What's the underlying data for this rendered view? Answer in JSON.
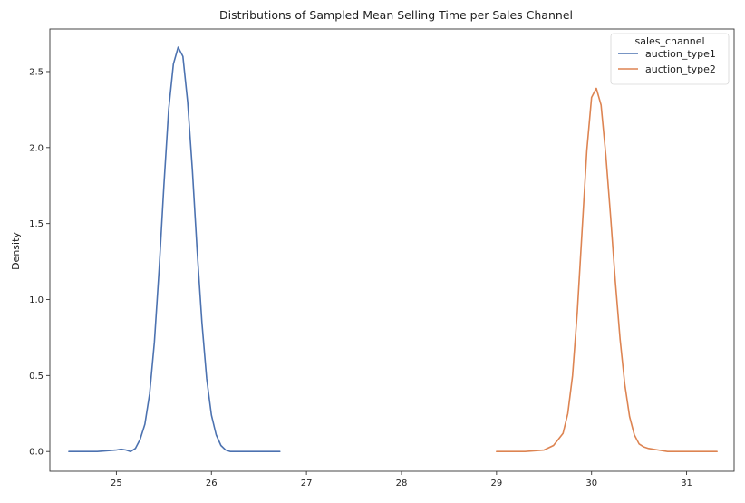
{
  "chart_data": {
    "type": "line",
    "title": "Distributions of Sampled Mean Selling Time per Sales Channel",
    "xlabel": "",
    "ylabel": "Density",
    "xlim": [
      24.3,
      31.5
    ],
    "ylim": [
      -0.13,
      2.78
    ],
    "xticks": [
      25,
      26,
      27,
      28,
      29,
      30,
      31
    ],
    "yticks": [
      0.0,
      0.5,
      1.0,
      1.5,
      2.0,
      2.5
    ],
    "xtick_labels": [
      "25",
      "26",
      "27",
      "28",
      "29",
      "30",
      "31"
    ],
    "ytick_labels": [
      "0.0",
      "0.5",
      "1.0",
      "1.5",
      "2.0",
      "2.5"
    ],
    "grid": false,
    "legend": {
      "title": "sales_channel",
      "placement": "top-right"
    },
    "series": [
      {
        "name": "auction_type1",
        "color": "#4c72b0",
        "x": [
          24.5,
          24.8,
          25.0,
          25.05,
          25.1,
          25.15,
          25.2,
          25.25,
          25.3,
          25.35,
          25.4,
          25.45,
          25.5,
          25.55,
          25.6,
          25.65,
          25.7,
          25.75,
          25.8,
          25.85,
          25.9,
          25.95,
          26.0,
          26.05,
          26.1,
          26.15,
          26.2,
          26.3,
          26.5,
          26.72
        ],
        "y": [
          0.0,
          0.0,
          0.01,
          0.015,
          0.01,
          0.0,
          0.02,
          0.08,
          0.18,
          0.38,
          0.72,
          1.2,
          1.75,
          2.25,
          2.55,
          2.66,
          2.6,
          2.3,
          1.85,
          1.32,
          0.85,
          0.48,
          0.24,
          0.11,
          0.04,
          0.01,
          0.0,
          0.0,
          0.0,
          0.0
        ]
      },
      {
        "name": "auction_type2",
        "color": "#dd8452",
        "x": [
          29.0,
          29.3,
          29.5,
          29.6,
          29.7,
          29.75,
          29.8,
          29.85,
          29.9,
          29.95,
          30.0,
          30.05,
          30.1,
          30.15,
          30.2,
          30.25,
          30.3,
          30.35,
          30.4,
          30.45,
          30.5,
          30.55,
          30.6,
          30.7,
          30.8,
          31.0,
          31.32
        ],
        "y": [
          0.0,
          0.0,
          0.01,
          0.04,
          0.12,
          0.25,
          0.5,
          0.92,
          1.45,
          1.98,
          2.33,
          2.39,
          2.28,
          1.95,
          1.55,
          1.12,
          0.74,
          0.44,
          0.23,
          0.11,
          0.05,
          0.03,
          0.02,
          0.01,
          0.0,
          0.0,
          0.0
        ]
      }
    ]
  }
}
